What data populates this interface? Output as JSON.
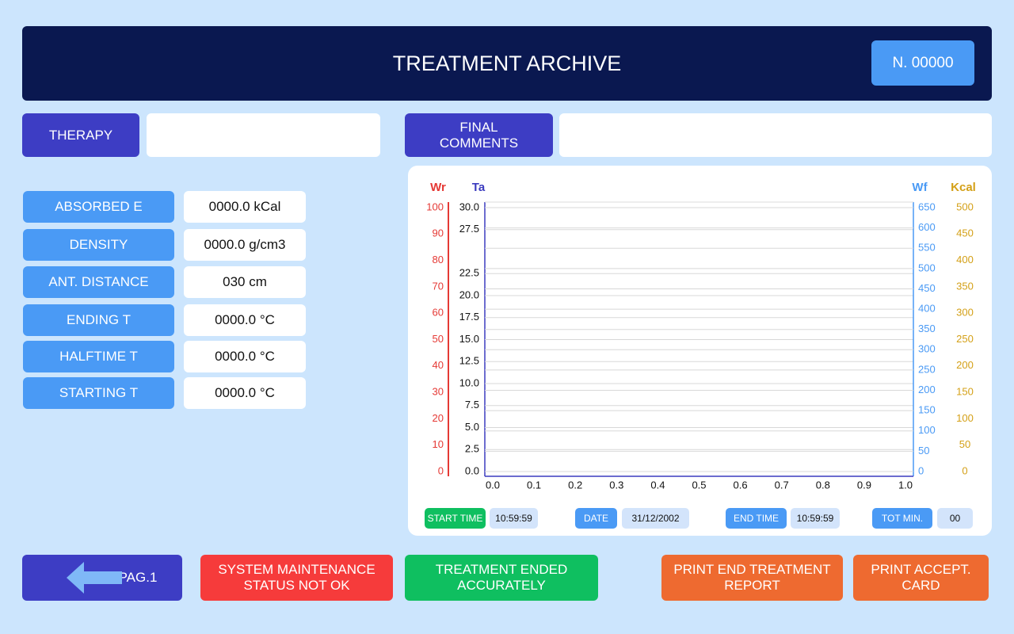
{
  "header": {
    "title": "TREATMENT ARCHIVE",
    "number": "N. 00000"
  },
  "therapy": {
    "label": "THERAPY"
  },
  "final_comments": {
    "label": [
      "FINAL",
      "COMMENTS"
    ]
  },
  "parameters": [
    {
      "label": "ABSORBED E",
      "value": "0000.0 kCal"
    },
    {
      "label": "DENSITY",
      "value": "0000.0 g/cm3"
    },
    {
      "label": "ANT. DISTANCE",
      "value": "030 cm"
    },
    {
      "label": "ENDING T",
      "value": "0000.0 °C"
    },
    {
      "label": "HALFTIME T",
      "value": "0000.0 °C"
    },
    {
      "label": "STARTING T",
      "value": "0000.0 °C"
    }
  ],
  "chart": {
    "y_axes": [
      {
        "name": "Wr",
        "color": "#e53935",
        "lim": [
          0,
          100
        ],
        "ticks": [
          0,
          10,
          20,
          30,
          40,
          50,
          60,
          70,
          80,
          90,
          100
        ]
      },
      {
        "name": "Ta",
        "color": "#3b3bbf",
        "lim": [
          0,
          30
        ],
        "ticks": [
          {
            "value": 0,
            "label": "0.0"
          },
          {
            "value": 2.5,
            "label": "2.5"
          },
          {
            "value": 5,
            "label": "5.0"
          },
          {
            "value": 7.5,
            "label": "7.5"
          },
          {
            "value": 10,
            "label": "10.0"
          },
          {
            "value": 12.5,
            "label": "12.5"
          },
          {
            "value": 15,
            "label": "15.0"
          },
          {
            "value": 17.5,
            "label": "17.5"
          },
          {
            "value": 20,
            "label": "20.0"
          },
          {
            "value": 22.5,
            "label": "22.5"
          },
          {
            "value": 27.5,
            "label": "27.5"
          },
          {
            "value": 30,
            "label": "30.0"
          }
        ]
      },
      {
        "name": "Wf",
        "color": "#4a9af5",
        "lim": [
          0,
          650
        ],
        "ticks": [
          0,
          50,
          100,
          150,
          200,
          250,
          300,
          350,
          400,
          450,
          500,
          550,
          600,
          650
        ]
      },
      {
        "name": "Kcal",
        "color": "#d4a017",
        "lim": [
          0,
          500
        ],
        "ticks": [
          0,
          50,
          100,
          150,
          200,
          250,
          300,
          350,
          400,
          450,
          500
        ]
      }
    ],
    "xlim": [
      0,
      1
    ],
    "xticks": [
      {
        "value": 0,
        "label": "0.0"
      },
      {
        "value": 0.1,
        "label": "0.1"
      },
      {
        "value": 0.2,
        "label": "0.2"
      },
      {
        "value": 0.3,
        "label": "0.3"
      },
      {
        "value": 0.4,
        "label": "0.4"
      },
      {
        "value": 0.5,
        "label": "0.5"
      },
      {
        "value": 0.6,
        "label": "0.6"
      },
      {
        "value": 0.7,
        "label": "0.7"
      },
      {
        "value": 0.8,
        "label": "0.8"
      },
      {
        "value": 0.9,
        "label": "0.9"
      },
      {
        "value": 1,
        "label": "1.0"
      }
    ]
  },
  "info": [
    {
      "label": "START TIME",
      "value": "10:59:59"
    },
    {
      "label": "DATE",
      "value": "31/12/2002"
    },
    {
      "label": "END TIME",
      "value": "10:59:59"
    },
    {
      "label": "TOT MIN.",
      "value": "00"
    }
  ],
  "buttons": [
    {
      "label": [
        "PAG.1"
      ]
    },
    {
      "label": [
        "SYSTEM MAINTENANCE",
        "STATUS NOT OK"
      ]
    },
    {
      "label": [
        "TREATMENT ENDED",
        "ACCURATELY"
      ]
    },
    {
      "label": [
        "PRINT END TREATMENT",
        "REPORT"
      ]
    },
    {
      "label": [
        "PRINT ACCEPT.",
        "CARD"
      ]
    }
  ]
}
